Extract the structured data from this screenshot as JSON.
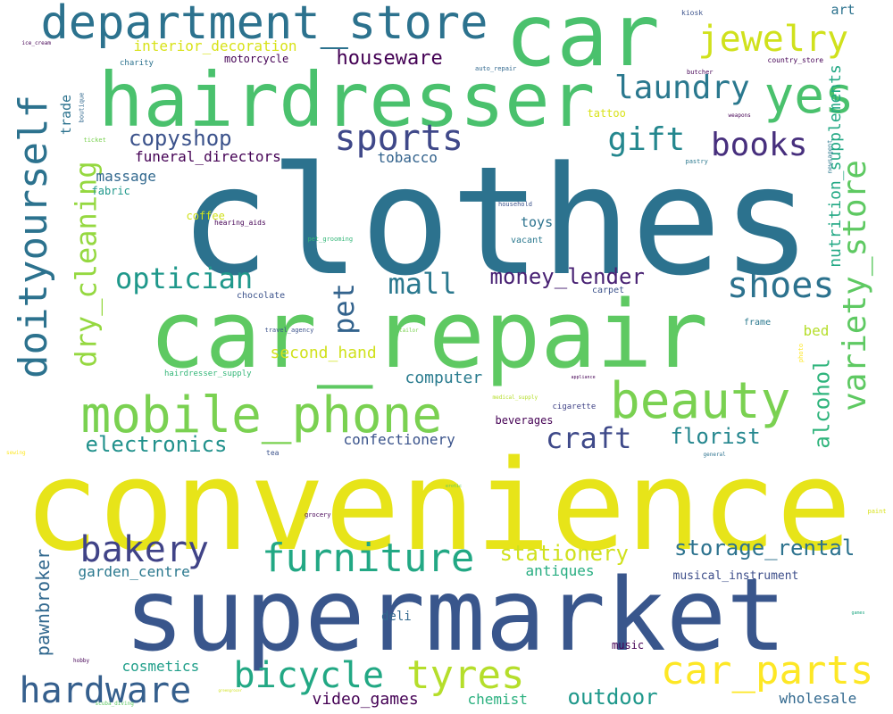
{
  "words": [
    {
      "text": "clothes",
      "color": "#2c728e"
    },
    {
      "text": "convenience",
      "color": "#e7e419"
    },
    {
      "text": "supermarket",
      "color": "#39568c"
    },
    {
      "text": "car_repair",
      "color": "#5ec962"
    },
    {
      "text": "car",
      "color": "#4ac16d"
    },
    {
      "text": "hairdresser",
      "color": "#4ac16d"
    },
    {
      "text": "department_store",
      "color": "#2c728e"
    },
    {
      "text": "mobile_phone",
      "color": "#7ad151"
    },
    {
      "text": "beauty",
      "color": "#7ad151"
    },
    {
      "text": "furniture",
      "color": "#22a884"
    },
    {
      "text": "car_parts",
      "color": "#fde725"
    },
    {
      "text": "tyres",
      "color": "#b5de2b"
    },
    {
      "text": "bicycle",
      "color": "#22a884"
    },
    {
      "text": "hardware",
      "color": "#355f8d"
    },
    {
      "text": "bakery",
      "color": "#404387"
    },
    {
      "text": "doityourself",
      "color": "#2c728e"
    },
    {
      "text": "variety_store",
      "color": "#5ec962"
    },
    {
      "text": "dry_cleaning",
      "color": "#95d840"
    },
    {
      "text": "yes",
      "color": "#4ac16d"
    },
    {
      "text": "jewelry",
      "color": "#d0e11c"
    },
    {
      "text": "sports",
      "color": "#3f4889"
    },
    {
      "text": "books",
      "color": "#472f7d"
    },
    {
      "text": "gift",
      "color": "#24878e"
    },
    {
      "text": "laundry",
      "color": "#2a788e"
    },
    {
      "text": "shoes",
      "color": "#2c728e"
    },
    {
      "text": "optician",
      "color": "#1f988b"
    },
    {
      "text": "pet",
      "color": "#33638d"
    },
    {
      "text": "mall",
      "color": "#2a788e"
    },
    {
      "text": "craft",
      "color": "#3e4989"
    },
    {
      "text": "florist",
      "color": "#24868e"
    },
    {
      "text": "electronics",
      "color": "#21918c"
    },
    {
      "text": "storage_rental",
      "color": "#2c728e"
    },
    {
      "text": "stationery",
      "color": "#d0e11c"
    },
    {
      "text": "outdoor",
      "color": "#1f988b"
    },
    {
      "text": "money_lender",
      "color": "#482173"
    },
    {
      "text": "alcohol",
      "color": "#2fb47c"
    },
    {
      "text": "copyshop",
      "color": "#3b528b"
    },
    {
      "text": "houseware",
      "color": "#440154"
    },
    {
      "text": "interior_decoration",
      "color": "#d8e219"
    },
    {
      "text": "nutrition_supplements",
      "color": "#22a884"
    },
    {
      "text": "garden_centre",
      "color": "#2a788e"
    },
    {
      "text": "pawnbroker",
      "color": "#31688e"
    },
    {
      "text": "antiques",
      "color": "#27ad81"
    },
    {
      "text": "computer",
      "color": "#297b8e"
    },
    {
      "text": "second_hand",
      "color": "#d0e11c"
    },
    {
      "text": "cosmetics",
      "color": "#1f9e89"
    },
    {
      "text": "video_games",
      "color": "#440154"
    },
    {
      "text": "chemist",
      "color": "#2ab07f"
    },
    {
      "text": "wholesale",
      "color": "#31688e"
    },
    {
      "text": "funeral_directors",
      "color": "#440154"
    },
    {
      "text": "massage",
      "color": "#31688e"
    },
    {
      "text": "tobacco",
      "color": "#33638d"
    },
    {
      "text": "confectionery",
      "color": "#3a538b"
    },
    {
      "text": "musical_instrument",
      "color": "#3d4e8a"
    },
    {
      "text": "deli",
      "color": "#31688e"
    },
    {
      "text": "music",
      "color": "#440154"
    },
    {
      "text": "beverages",
      "color": "#440154"
    },
    {
      "text": "motorcycle",
      "color": "#440154"
    },
    {
      "text": "toys",
      "color": "#2c728e"
    },
    {
      "text": "trade",
      "color": "#2c728e"
    },
    {
      "text": "art",
      "color": "#2c728e"
    },
    {
      "text": "bed",
      "color": "#b5de2b"
    },
    {
      "text": "fabric",
      "color": "#1f988b"
    },
    {
      "text": "coffee",
      "color": "#d0e11c"
    },
    {
      "text": "tattoo",
      "color": "#d8e219"
    },
    {
      "text": "chocolate",
      "color": "#3b528b"
    },
    {
      "text": "carpet",
      "color": "#3b528b"
    },
    {
      "text": "frame",
      "color": "#2a788e"
    },
    {
      "text": "vacant",
      "color": "#2a788e"
    },
    {
      "text": "cigarette",
      "color": "#414487"
    },
    {
      "text": "tea",
      "color": "#3b528b"
    },
    {
      "text": "hearing_aids",
      "color": "#440154"
    },
    {
      "text": "hairdresser_supply",
      "color": "#35b779"
    },
    {
      "text": "household",
      "color": "#3b528b"
    },
    {
      "text": "travel_agency",
      "color": "#3b528b"
    },
    {
      "text": "charity",
      "color": "#2c728e"
    },
    {
      "text": "kiosk",
      "color": "#3b528b"
    },
    {
      "text": "butcher",
      "color": "#440154"
    },
    {
      "text": "country_store",
      "color": "#440154"
    },
    {
      "text": "grocery",
      "color": "#440154"
    },
    {
      "text": "boutique",
      "color": "#31688e"
    },
    {
      "text": "auto_repair",
      "color": "#31688e"
    },
    {
      "text": "weapons",
      "color": "#440154"
    },
    {
      "text": "pastry",
      "color": "#2a788e"
    },
    {
      "text": "newsagent",
      "color": "#2a788e"
    },
    {
      "text": "ice_cream",
      "color": "#440154"
    },
    {
      "text": "ticket",
      "color": "#7ad151"
    },
    {
      "text": "pet_grooming",
      "color": "#35b779"
    },
    {
      "text": "tailor",
      "color": "#7ad151"
    },
    {
      "text": "photo",
      "color": "#fde725"
    },
    {
      "text": "appliance",
      "color": "#440154"
    },
    {
      "text": "medical_supply",
      "color": "#b5de2b"
    },
    {
      "text": "general",
      "color": "#2c728e"
    },
    {
      "text": "sewing",
      "color": "#fde725"
    },
    {
      "text": "erotic",
      "color": "#5ec962"
    },
    {
      "text": "paint",
      "color": "#d8e219"
    },
    {
      "text": "games",
      "color": "#22a884"
    },
    {
      "text": "hobby",
      "color": "#440154"
    },
    {
      "text": "scuba_diving",
      "color": "#5ec962"
    },
    {
      "text": "greengrocer",
      "color": "#d0e11c"
    }
  ]
}
